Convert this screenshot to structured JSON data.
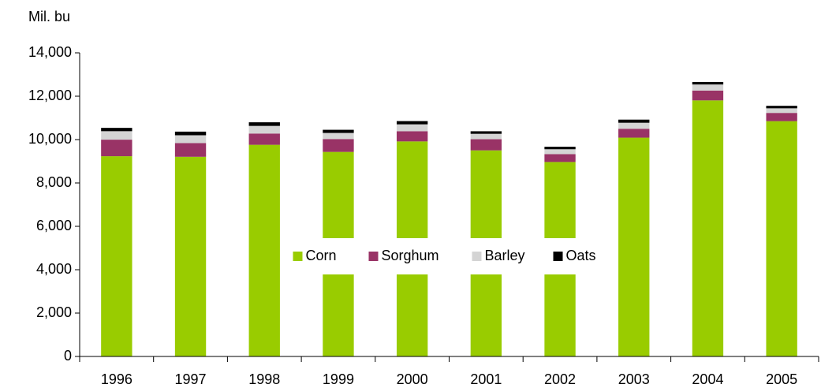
{
  "chart_data": {
    "type": "stacked_bar",
    "y_axis_label": "Mil. bu",
    "categories": [
      "1996",
      "1997",
      "1998",
      "1999",
      "2000",
      "2001",
      "2002",
      "2003",
      "2004",
      "2005"
    ],
    "series": [
      {
        "name": "Corn",
        "color": "#99cc00",
        "values": [
          9233,
          9207,
          9759,
          9431,
          9915,
          9503,
          8967,
          10089,
          11807,
          10850
        ]
      },
      {
        "name": "Sorghum",
        "color": "#993366",
        "values": [
          764,
          633,
          520,
          595,
          470,
          514,
          360,
          411,
          455,
          380
        ]
      },
      {
        "name": "Barley",
        "color": "#d4d4d4",
        "values": [
          390,
          360,
          352,
          280,
          318,
          250,
          227,
          276,
          279,
          212
        ]
      },
      {
        "name": "Oats",
        "color": "#000000",
        "values": [
          153,
          167,
          166,
          146,
          150,
          117,
          116,
          144,
          116,
          115
        ]
      }
    ],
    "ylim": [
      0,
      14000
    ],
    "yticks": [
      0,
      {
        "value": 2000,
        "label": "2,000"
      },
      {
        "value": 4000,
        "label": "4,000"
      },
      {
        "value": 6000,
        "label": "6,000"
      },
      {
        "value": 8000,
        "label": "8,000"
      },
      {
        "value": 10000,
        "label": "10,000"
      },
      {
        "value": 12000,
        "label": "12,000"
      },
      {
        "value": 14000,
        "label": "14,000"
      }
    ],
    "legend": "center"
  }
}
